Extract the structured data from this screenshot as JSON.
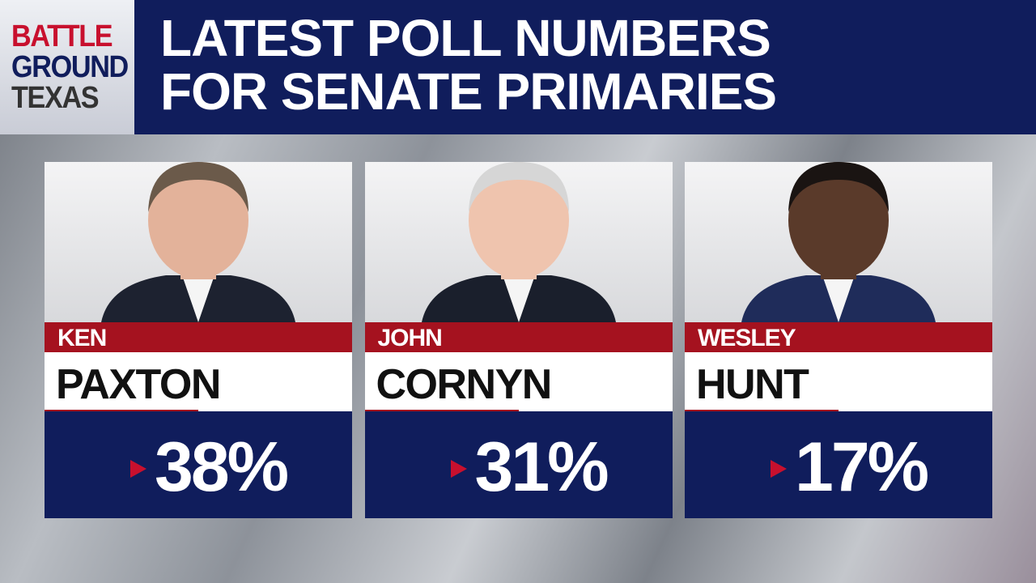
{
  "header": {
    "logo": [
      "BATTLE",
      "GROUND",
      "TEXAS"
    ],
    "title": [
      "LATEST POLL NUMBERS",
      "FOR SENATE PRIMARIES"
    ]
  },
  "candidates": [
    {
      "first": "KEN",
      "last": "PAXTON",
      "value": "38%"
    },
    {
      "first": "JOHN",
      "last": "CORNYN",
      "value": "31%"
    },
    {
      "first": "WESLEY",
      "last": "HUNT",
      "value": "17%"
    }
  ]
}
